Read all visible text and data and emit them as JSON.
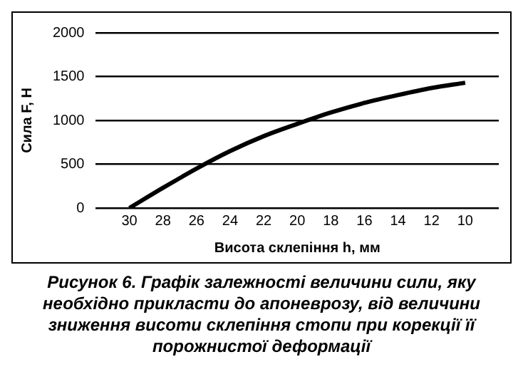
{
  "chart_data": {
    "type": "line",
    "xlabel": "Висота склепіння h, мм",
    "ylabel": "Сила F, Н",
    "x": [
      30,
      28,
      26,
      24,
      22,
      20,
      18,
      16,
      14,
      12,
      10
    ],
    "series": [
      {
        "color": "#000000",
        "values": [
          0,
          230,
          450,
          650,
          820,
          960,
          1090,
          1200,
          1290,
          1370,
          1430
        ]
      }
    ],
    "xlim": [
      32,
      8
    ],
    "xticks": [
      30,
      28,
      26,
      24,
      22,
      20,
      18,
      16,
      14,
      12,
      10
    ],
    "ylim": [
      0,
      2000
    ],
    "yticks": [
      0,
      500,
      1000,
      1500,
      2000
    ],
    "grid": "y",
    "legend": false,
    "marker": "none",
    "line_style": "solid",
    "annotations": [
      "Рисунок 6. Графік залежності величини сили, яку необхідно прикласти до апоневрозу, від величини зниження висоти склепіння стопи при корекції її порожнистої деформації"
    ]
  }
}
